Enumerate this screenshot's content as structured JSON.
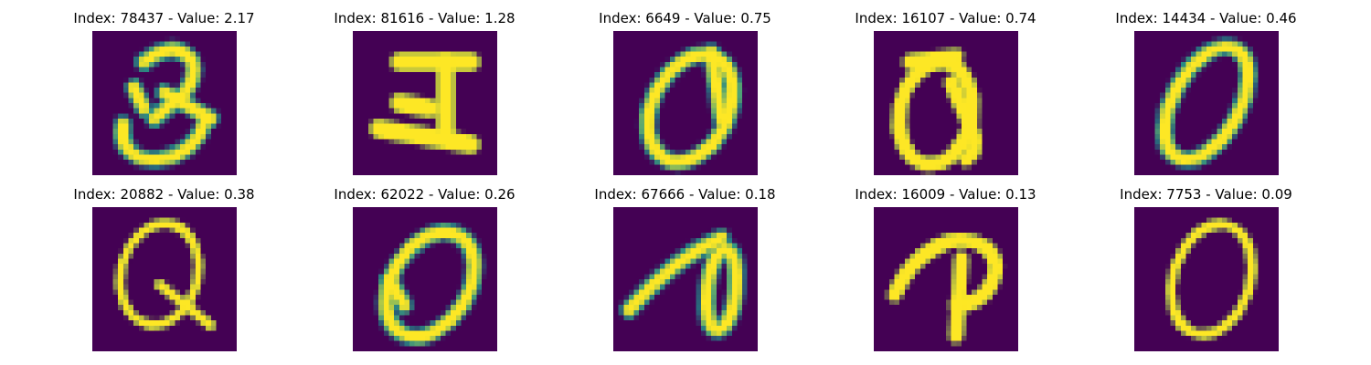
{
  "panels": [
    {
      "title": "Index: 78437 - Value: 2.17",
      "index": 78437,
      "value": 2.17,
      "shape": "q-loop-tail"
    },
    {
      "title": "Index: 81616 - Value: 1.28",
      "index": 81616,
      "value": 1.28,
      "shape": "bar-glyph"
    },
    {
      "title": "Index: 6649 - Value: 0.75",
      "index": 6649,
      "value": 0.75,
      "shape": "loop-slanted"
    },
    {
      "title": "Index: 16107 - Value: 0.74",
      "index": 16107,
      "value": 0.74,
      "shape": "q-loop-tail-thick"
    },
    {
      "title": "Index: 14434 - Value: 0.46",
      "index": 14434,
      "value": 0.46,
      "shape": "loop-oval-slanted"
    },
    {
      "title": "Index: 20882 - Value: 0.38",
      "index": 20882,
      "value": 0.38,
      "shape": "q-loop-tail-thin"
    },
    {
      "title": "Index: 62022 - Value: 0.26",
      "index": 62022,
      "value": 0.26,
      "shape": "loop-inner-hook"
    },
    {
      "title": "Index: 67666 - Value: 0.18",
      "index": 67666,
      "value": 0.18,
      "shape": "stroke-loop-right"
    },
    {
      "title": "Index: 16009 - Value: 0.13",
      "index": 16009,
      "value": 0.13,
      "shape": "stroke-hook-down"
    },
    {
      "title": "Index: 7753 - Value: 0.09",
      "index": 7753,
      "value": 0.09,
      "shape": "loop-thin"
    }
  ],
  "colors": {
    "background": "#440154",
    "foreground": "#fde725",
    "edge": "#21918c"
  }
}
